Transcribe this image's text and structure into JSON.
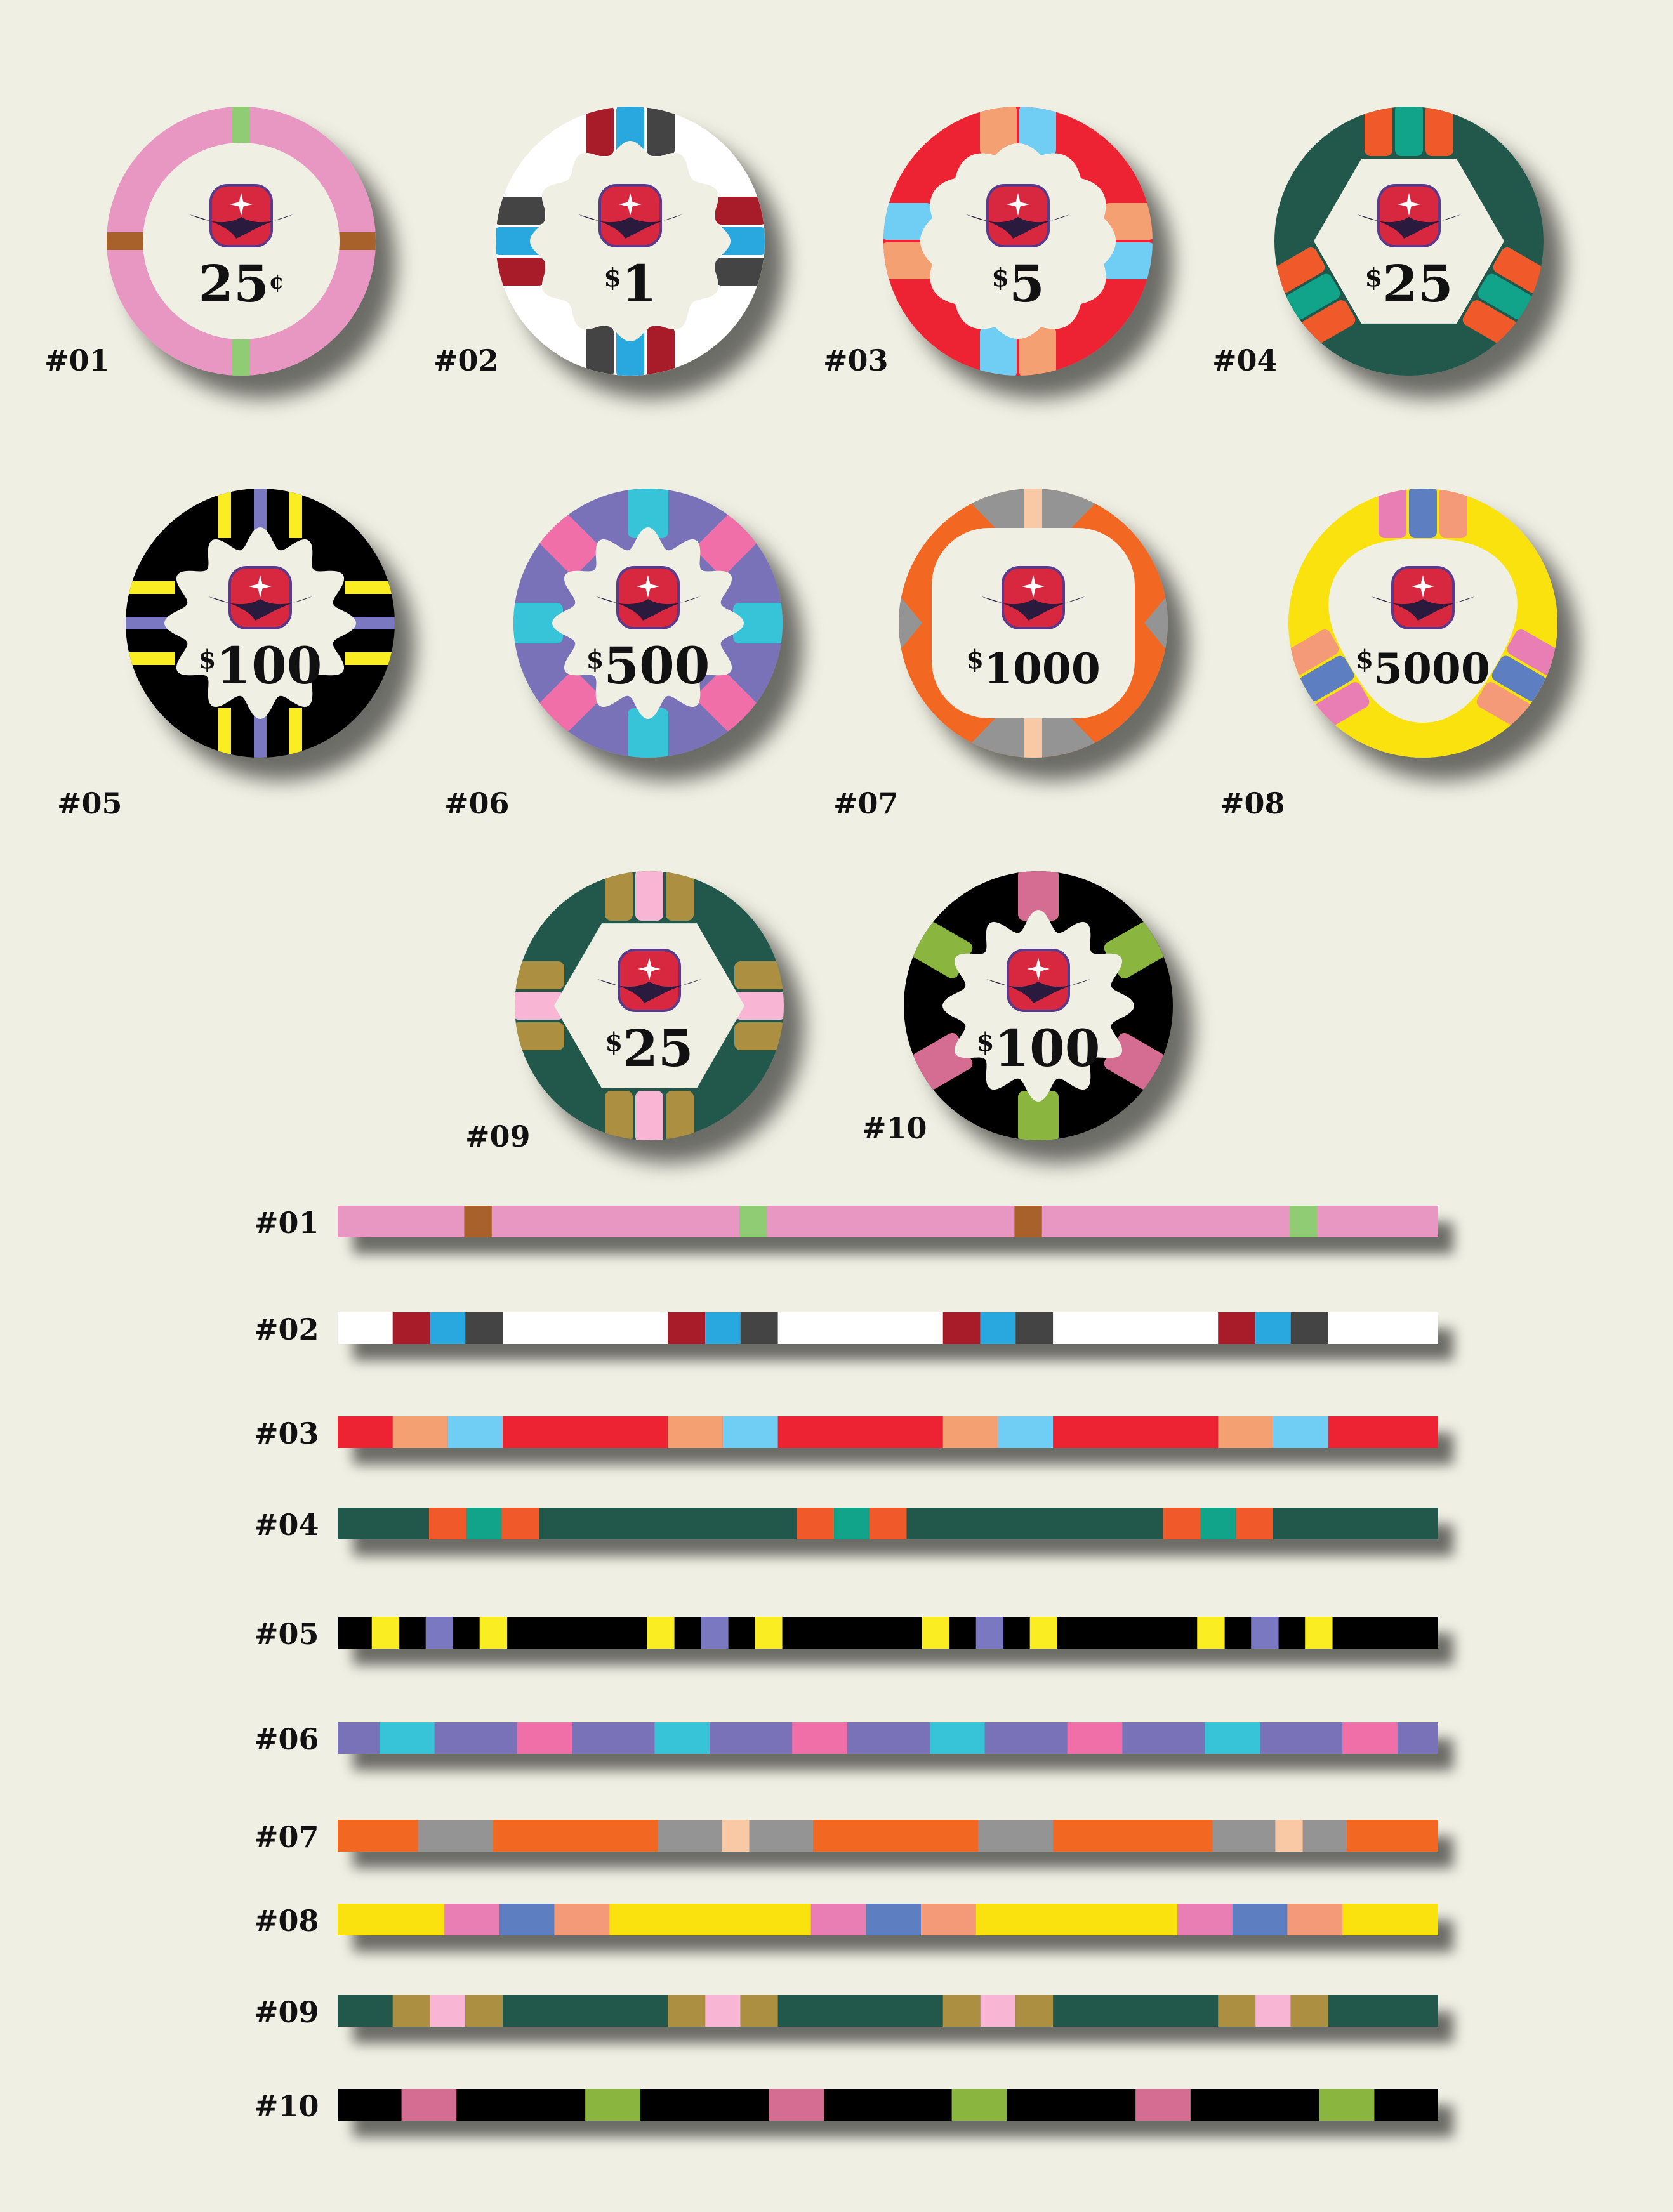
{
  "logo": {
    "badge_color": "#d8283f",
    "outline_color": "#5a3a8a",
    "bird_color": "#2a1a3e",
    "star_color": "#ffffff"
  },
  "center_color": "#efefe3",
  "chips": [
    {
      "id": "#01",
      "denomination": "25",
      "currency": "¢",
      "currency_position": "after",
      "base": "#e897c3",
      "center_shape": "circle",
      "inserts": [
        {
          "angle": 0,
          "colors": [
            "#8fcc73"
          ]
        },
        {
          "angle": 90,
          "colors": [
            "#a8612a"
          ]
        },
        {
          "angle": 180,
          "colors": [
            "#8fcc73"
          ]
        },
        {
          "angle": 270,
          "colors": [
            "#a8612a"
          ]
        }
      ],
      "insert_style": "thin"
    },
    {
      "id": "#02",
      "denomination": "1",
      "currency": "$",
      "currency_position": "before",
      "base": "#ffffff",
      "center_shape": "scalloped",
      "inserts": [
        {
          "angle": 0,
          "colors": [
            "#a81c2a",
            "#29a8e0",
            "#444444"
          ]
        },
        {
          "angle": 90,
          "colors": [
            "#a81c2a",
            "#29a8e0",
            "#444444"
          ]
        },
        {
          "angle": 180,
          "colors": [
            "#a81c2a",
            "#29a8e0",
            "#444444"
          ]
        },
        {
          "angle": 270,
          "colors": [
            "#a81c2a",
            "#29a8e0",
            "#444444"
          ]
        }
      ],
      "insert_style": "block3"
    },
    {
      "id": "#03",
      "denomination": "5",
      "currency": "$",
      "currency_position": "before",
      "base": "#ed2330",
      "center_shape": "flower",
      "inserts": [
        {
          "angle": 0,
          "colors": [
            "#f5a073",
            "#70cdf3"
          ]
        },
        {
          "angle": 90,
          "colors": [
            "#f5a073",
            "#70cdf3"
          ]
        },
        {
          "angle": 180,
          "colors": [
            "#f5a073",
            "#70cdf3"
          ]
        },
        {
          "angle": 270,
          "colors": [
            "#f5a073",
            "#70cdf3"
          ]
        }
      ],
      "insert_style": "block2"
    },
    {
      "id": "#04",
      "denomination": "25",
      "currency": "$",
      "currency_position": "before",
      "base": "#22594c",
      "center_shape": "hexagon",
      "inserts": [
        {
          "angle": 0,
          "colors": [
            "#f05a2b",
            "#12a48a",
            "#f05a2b"
          ]
        },
        {
          "angle": 120,
          "colors": [
            "#f05a2b",
            "#12a48a",
            "#f05a2b"
          ]
        },
        {
          "angle": 240,
          "colors": [
            "#f05a2b",
            "#12a48a",
            "#f05a2b"
          ]
        }
      ],
      "insert_style": "block3"
    },
    {
      "id": "#05",
      "denomination": "100",
      "currency": "$",
      "currency_position": "before",
      "base": "#060606",
      "center_shape": "gear",
      "inserts": [
        {
          "angle": 0,
          "colors": [
            "#faee23",
            "#7a78c0",
            "#faee23"
          ]
        },
        {
          "angle": 90,
          "colors": [
            "#faee23",
            "#7a78c0",
            "#faee23"
          ]
        },
        {
          "angle": 180,
          "colors": [
            "#faee23",
            "#7a78c0",
            "#faee23"
          ]
        },
        {
          "angle": 270,
          "colors": [
            "#faee23",
            "#7a78c0",
            "#faee23"
          ]
        }
      ],
      "insert_style": "stripes"
    },
    {
      "id": "#06",
      "denomination": "500",
      "currency": "$",
      "currency_position": "before",
      "base": "#7a72b8",
      "center_shape": "gear",
      "inserts": [
        {
          "angle": 0,
          "colors": [
            "#37c3d8"
          ]
        },
        {
          "angle": 45,
          "colors": [
            "#f06fa8"
          ]
        },
        {
          "angle": 90,
          "colors": [
            "#37c3d8"
          ]
        },
        {
          "angle": 135,
          "colors": [
            "#f06fa8"
          ]
        },
        {
          "angle": 180,
          "colors": [
            "#37c3d8"
          ]
        },
        {
          "angle": 225,
          "colors": [
            "#f06fa8"
          ]
        },
        {
          "angle": 270,
          "colors": [
            "#37c3d8"
          ]
        },
        {
          "angle": 315,
          "colors": [
            "#f06fa8"
          ]
        }
      ],
      "insert_style": "block1"
    },
    {
      "id": "#07",
      "denomination": "1000",
      "currency": "$",
      "currency_position": "before",
      "base": "#f26822",
      "center_shape": "rounded",
      "inserts": [
        {
          "angle": 0,
          "colors": [
            "#f9c9a6"
          ]
        },
        {
          "angle": 180,
          "colors": [
            "#f9c9a6"
          ]
        }
      ],
      "insert_style": "thin",
      "accent": "#949494"
    },
    {
      "id": "#08",
      "denomination": "5000",
      "currency": "$",
      "currency_position": "before",
      "base": "#f9e20e",
      "center_shape": "blob",
      "inserts": [
        {
          "angle": 0,
          "colors": [
            "#e97eb5",
            "#5e7ec2",
            "#f59a79"
          ]
        },
        {
          "angle": 120,
          "colors": [
            "#e97eb5",
            "#5e7ec2",
            "#f59a79"
          ]
        },
        {
          "angle": 240,
          "colors": [
            "#e97eb5",
            "#5e7ec2",
            "#f59a79"
          ]
        }
      ],
      "insert_style": "block3"
    },
    {
      "id": "#09",
      "denomination": "25",
      "currency": "$",
      "currency_position": "before",
      "base": "#22594c",
      "center_shape": "hexagon",
      "inserts": [
        {
          "angle": 0,
          "colors": [
            "#ac8f40",
            "#f9b5d4",
            "#ac8f40"
          ]
        },
        {
          "angle": 90,
          "colors": [
            "#ac8f40",
            "#f9b5d4",
            "#ac8f40"
          ]
        },
        {
          "angle": 180,
          "colors": [
            "#ac8f40",
            "#f9b5d4",
            "#ac8f40"
          ]
        },
        {
          "angle": 270,
          "colors": [
            "#ac8f40",
            "#f9b5d4",
            "#ac8f40"
          ]
        }
      ],
      "insert_style": "block3"
    },
    {
      "id": "#10",
      "denomination": "100",
      "currency": "$",
      "currency_position": "before",
      "base": "#060606",
      "center_shape": "gear",
      "inserts": [
        {
          "angle": 0,
          "colors": [
            "#d56c91"
          ]
        },
        {
          "angle": 60,
          "colors": [
            "#8ab63f"
          ]
        },
        {
          "angle": 120,
          "colors": [
            "#d56c91"
          ]
        },
        {
          "angle": 180,
          "colors": [
            "#8ab63f"
          ]
        },
        {
          "angle": 240,
          "colors": [
            "#d56c91"
          ]
        },
        {
          "angle": 300,
          "colors": [
            "#8ab63f"
          ]
        }
      ],
      "insert_style": "block1"
    }
  ],
  "strips": [
    {
      "label": "#01",
      "base": "#e897c3",
      "segments": [
        {
          "start": 0.115,
          "width": 0.025,
          "color": "#a8612a"
        },
        {
          "start": 0.365,
          "width": 0.025,
          "color": "#8fcc73"
        },
        {
          "start": 0.615,
          "width": 0.025,
          "color": "#a8612a"
        },
        {
          "start": 0.865,
          "width": 0.025,
          "color": "#8fcc73"
        }
      ]
    },
    {
      "label": "#02",
      "base": "#ffffff",
      "segments": [
        {
          "start": 0.05,
          "width": 0.034,
          "color": "#a81c2a"
        },
        {
          "start": 0.084,
          "width": 0.032,
          "color": "#29a8e0"
        },
        {
          "start": 0.116,
          "width": 0.034,
          "color": "#444444"
        },
        {
          "start": 0.3,
          "width": 0.034,
          "color": "#a81c2a"
        },
        {
          "start": 0.334,
          "width": 0.032,
          "color": "#29a8e0"
        },
        {
          "start": 0.366,
          "width": 0.034,
          "color": "#444444"
        },
        {
          "start": 0.55,
          "width": 0.034,
          "color": "#a81c2a"
        },
        {
          "start": 0.584,
          "width": 0.032,
          "color": "#29a8e0"
        },
        {
          "start": 0.616,
          "width": 0.034,
          "color": "#444444"
        },
        {
          "start": 0.8,
          "width": 0.034,
          "color": "#a81c2a"
        },
        {
          "start": 0.834,
          "width": 0.032,
          "color": "#29a8e0"
        },
        {
          "start": 0.866,
          "width": 0.034,
          "color": "#444444"
        }
      ]
    },
    {
      "label": "#03",
      "base": "#ed2330",
      "segments": [
        {
          "start": 0.05,
          "width": 0.05,
          "color": "#f5a073"
        },
        {
          "start": 0.1,
          "width": 0.05,
          "color": "#70cdf3"
        },
        {
          "start": 0.3,
          "width": 0.05,
          "color": "#f5a073"
        },
        {
          "start": 0.35,
          "width": 0.05,
          "color": "#70cdf3"
        },
        {
          "start": 0.55,
          "width": 0.05,
          "color": "#f5a073"
        },
        {
          "start": 0.6,
          "width": 0.05,
          "color": "#70cdf3"
        },
        {
          "start": 0.8,
          "width": 0.05,
          "color": "#f5a073"
        },
        {
          "start": 0.85,
          "width": 0.05,
          "color": "#70cdf3"
        }
      ]
    },
    {
      "label": "#04",
      "base": "#22594c",
      "segments": [
        {
          "start": 0.083,
          "width": 0.034,
          "color": "#f05a2b"
        },
        {
          "start": 0.117,
          "width": 0.032,
          "color": "#12a48a"
        },
        {
          "start": 0.149,
          "width": 0.034,
          "color": "#f05a2b"
        },
        {
          "start": 0.417,
          "width": 0.034,
          "color": "#f05a2b"
        },
        {
          "start": 0.451,
          "width": 0.032,
          "color": "#12a48a"
        },
        {
          "start": 0.483,
          "width": 0.034,
          "color": "#f05a2b"
        },
        {
          "start": 0.75,
          "width": 0.034,
          "color": "#f05a2b"
        },
        {
          "start": 0.784,
          "width": 0.032,
          "color": "#12a48a"
        },
        {
          "start": 0.816,
          "width": 0.034,
          "color": "#f05a2b"
        }
      ]
    },
    {
      "label": "#05",
      "base": "#060606",
      "segments": [
        {
          "start": 0.031,
          "width": 0.025,
          "color": "#faee23"
        },
        {
          "start": 0.08,
          "width": 0.025,
          "color": "#7a78c0"
        },
        {
          "start": 0.129,
          "width": 0.025,
          "color": "#faee23"
        },
        {
          "start": 0.281,
          "width": 0.025,
          "color": "#faee23"
        },
        {
          "start": 0.33,
          "width": 0.025,
          "color": "#7a78c0"
        },
        {
          "start": 0.379,
          "width": 0.025,
          "color": "#faee23"
        },
        {
          "start": 0.531,
          "width": 0.025,
          "color": "#faee23"
        },
        {
          "start": 0.58,
          "width": 0.025,
          "color": "#7a78c0"
        },
        {
          "start": 0.629,
          "width": 0.025,
          "color": "#faee23"
        },
        {
          "start": 0.781,
          "width": 0.025,
          "color": "#faee23"
        },
        {
          "start": 0.83,
          "width": 0.025,
          "color": "#7a78c0"
        },
        {
          "start": 0.879,
          "width": 0.025,
          "color": "#faee23"
        }
      ]
    },
    {
      "label": "#06",
      "base": "#7a72b8",
      "segments": [
        {
          "start": 0.038,
          "width": 0.05,
          "color": "#37c3d8"
        },
        {
          "start": 0.163,
          "width": 0.05,
          "color": "#f06fa8"
        },
        {
          "start": 0.288,
          "width": 0.05,
          "color": "#37c3d8"
        },
        {
          "start": 0.413,
          "width": 0.05,
          "color": "#f06fa8"
        },
        {
          "start": 0.538,
          "width": 0.05,
          "color": "#37c3d8"
        },
        {
          "start": 0.663,
          "width": 0.05,
          "color": "#f06fa8"
        },
        {
          "start": 0.788,
          "width": 0.05,
          "color": "#37c3d8"
        },
        {
          "start": 0.913,
          "width": 0.05,
          "color": "#f06fa8"
        }
      ]
    },
    {
      "label": "#07",
      "base": "#f26822",
      "segments": [
        {
          "start": 0.073,
          "width": 0.068,
          "color": "#949494"
        },
        {
          "start": 0.291,
          "width": 0.058,
          "color": "#949494"
        },
        {
          "start": 0.349,
          "width": 0.025,
          "color": "#f9c9a6"
        },
        {
          "start": 0.374,
          "width": 0.058,
          "color": "#949494"
        },
        {
          "start": 0.582,
          "width": 0.068,
          "color": "#949494"
        },
        {
          "start": 0.795,
          "width": 0.057,
          "color": "#949494"
        },
        {
          "start": 0.852,
          "width": 0.025,
          "color": "#f9c9a6"
        },
        {
          "start": 0.877,
          "width": 0.04,
          "color": "#949494"
        }
      ]
    },
    {
      "label": "#08",
      "base": "#f9e20e",
      "segments": [
        {
          "start": 0.097,
          "width": 0.05,
          "color": "#e97eb5"
        },
        {
          "start": 0.147,
          "width": 0.05,
          "color": "#5e7ec2"
        },
        {
          "start": 0.197,
          "width": 0.05,
          "color": "#f59a79"
        },
        {
          "start": 0.43,
          "width": 0.05,
          "color": "#e97eb5"
        },
        {
          "start": 0.48,
          "width": 0.05,
          "color": "#5e7ec2"
        },
        {
          "start": 0.53,
          "width": 0.05,
          "color": "#f59a79"
        },
        {
          "start": 0.763,
          "width": 0.05,
          "color": "#e97eb5"
        },
        {
          "start": 0.813,
          "width": 0.05,
          "color": "#5e7ec2"
        },
        {
          "start": 0.863,
          "width": 0.05,
          "color": "#f59a79"
        }
      ]
    },
    {
      "label": "#09",
      "base": "#22594c",
      "segments": [
        {
          "start": 0.05,
          "width": 0.034,
          "color": "#ac8f40"
        },
        {
          "start": 0.084,
          "width": 0.032,
          "color": "#f9b5d4"
        },
        {
          "start": 0.116,
          "width": 0.034,
          "color": "#ac8f40"
        },
        {
          "start": 0.3,
          "width": 0.034,
          "color": "#ac8f40"
        },
        {
          "start": 0.334,
          "width": 0.032,
          "color": "#f9b5d4"
        },
        {
          "start": 0.366,
          "width": 0.034,
          "color": "#ac8f40"
        },
        {
          "start": 0.55,
          "width": 0.034,
          "color": "#ac8f40"
        },
        {
          "start": 0.584,
          "width": 0.032,
          "color": "#f9b5d4"
        },
        {
          "start": 0.616,
          "width": 0.034,
          "color": "#ac8f40"
        },
        {
          "start": 0.8,
          "width": 0.034,
          "color": "#ac8f40"
        },
        {
          "start": 0.834,
          "width": 0.032,
          "color": "#f9b5d4"
        },
        {
          "start": 0.866,
          "width": 0.034,
          "color": "#ac8f40"
        }
      ]
    },
    {
      "label": "#10",
      "base": "#060606",
      "segments": [
        {
          "start": 0.058,
          "width": 0.05,
          "color": "#d56c91"
        },
        {
          "start": 0.225,
          "width": 0.05,
          "color": "#8ab63f"
        },
        {
          "start": 0.392,
          "width": 0.05,
          "color": "#d56c91"
        },
        {
          "start": 0.558,
          "width": 0.05,
          "color": "#8ab63f"
        },
        {
          "start": 0.725,
          "width": 0.05,
          "color": "#d56c91"
        },
        {
          "start": 0.892,
          "width": 0.05,
          "color": "#8ab63f"
        }
      ]
    }
  ]
}
